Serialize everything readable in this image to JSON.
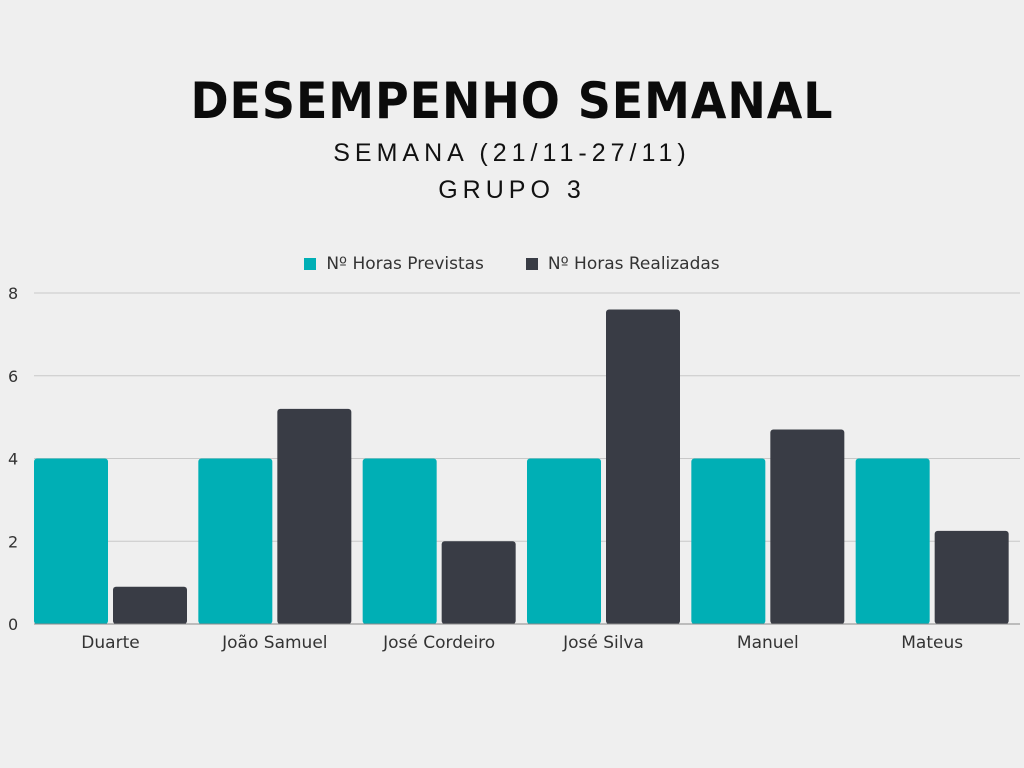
{
  "colors": {
    "background": "#efefef",
    "previstas": "#00afb5",
    "realizadas": "#393c45",
    "grid": "#c8c8c8"
  },
  "chart_data": {
    "type": "bar",
    "title": "DESEMPENHO SEMANAL",
    "subtitle": [
      "SEMANA (21/11-27/11)",
      "GRUPO 3"
    ],
    "categories": [
      "Duarte",
      "João Samuel",
      "José Cordeiro",
      "José Silva",
      "Manuel",
      "Mateus"
    ],
    "series": [
      {
        "name": "Nº Horas Previstas",
        "color": "#00afb5",
        "values": [
          4,
          4,
          4,
          4,
          4,
          4
        ]
      },
      {
        "name": "Nº Horas Realizadas",
        "color": "#393c45",
        "values": [
          0.9,
          5.2,
          2.0,
          7.6,
          4.7,
          2.25
        ]
      }
    ],
    "yticks": [
      0,
      2,
      4,
      6,
      8
    ],
    "ylim": [
      0,
      8
    ],
    "grid": true,
    "legend": "top-center"
  }
}
